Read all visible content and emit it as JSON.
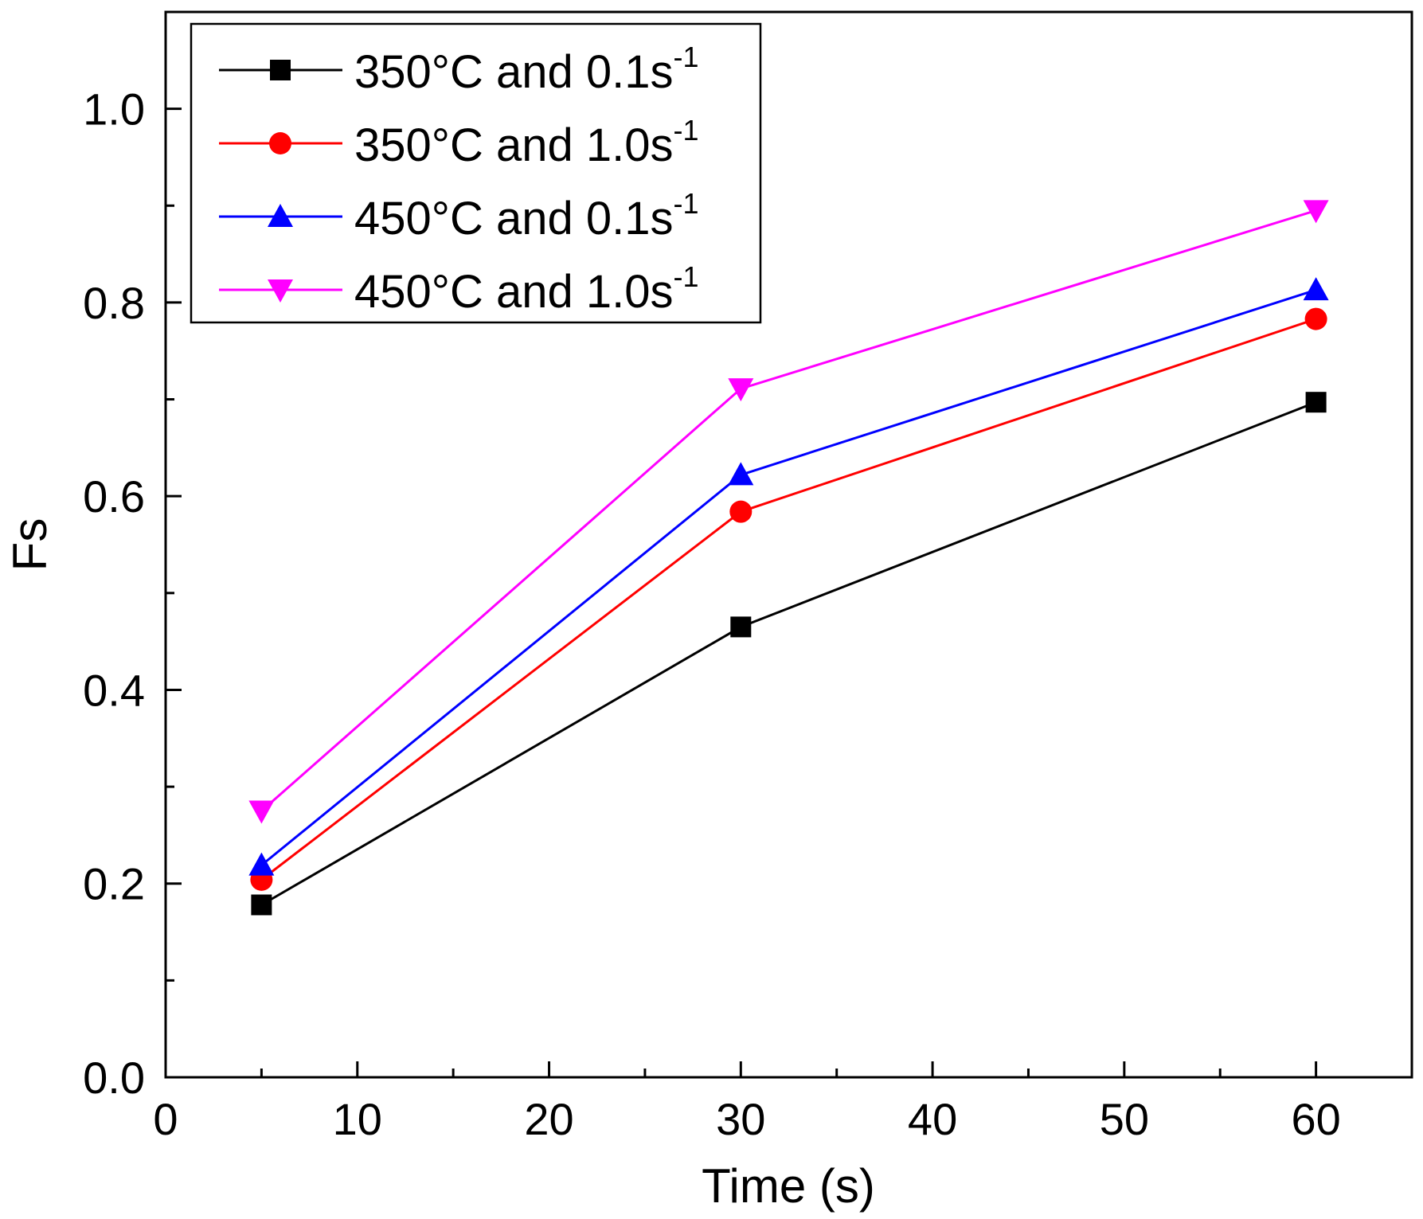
{
  "chart_data": {
    "type": "line",
    "title": "",
    "xlabel": "Time (s)",
    "ylabel": "Fs",
    "xlim": [
      0,
      65
    ],
    "ylim": [
      0,
      1.1
    ],
    "x_ticks": [
      0,
      10,
      20,
      30,
      40,
      50,
      60
    ],
    "x_tick_labels": [
      "0",
      "10",
      "20",
      "30",
      "40",
      "50",
      "60"
    ],
    "y_ticks": [
      0.0,
      0.2,
      0.4,
      0.6,
      0.8,
      1.0
    ],
    "y_tick_labels": [
      "0.0",
      "0.2",
      "0.4",
      "0.6",
      "0.8",
      "1.0"
    ],
    "legend_position": "top-left",
    "x": [
      5,
      30,
      60
    ],
    "series": [
      {
        "name": "350°C and 0.1s-1",
        "label_main": "350°C and 0.1s",
        "label_sup": "-1",
        "color": "#000000",
        "marker": "square",
        "values": [
          0.178,
          0.465,
          0.697
        ]
      },
      {
        "name": "350°C and 1.0s-1",
        "label_main": "350°C and 1.0s",
        "label_sup": "-1",
        "color": "#ff0000",
        "marker": "circle",
        "values": [
          0.204,
          0.584,
          0.783
        ]
      },
      {
        "name": "450°C and 0.1s-1",
        "label_main": "450°C and 0.1s",
        "label_sup": "-1",
        "color": "#0000ff",
        "marker": "triangle-up",
        "values": [
          0.219,
          0.622,
          0.813
        ]
      },
      {
        "name": "450°C and 1.0s-1",
        "label_main": "450°C and 1.0s",
        "label_sup": "-1",
        "color": "#ff00ff",
        "marker": "triangle-down",
        "values": [
          0.275,
          0.711,
          0.895
        ]
      }
    ]
  }
}
